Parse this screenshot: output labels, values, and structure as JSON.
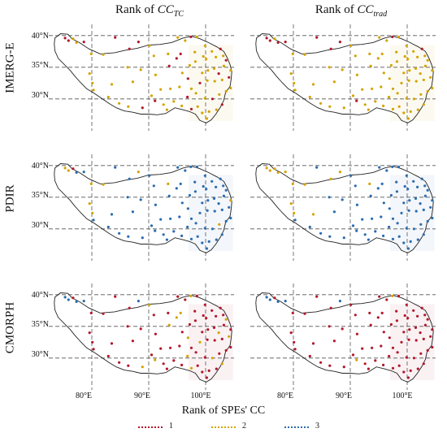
{
  "column_titles": [
    {
      "prefix": "Rank of ",
      "var": "CC",
      "sub": "TC"
    },
    {
      "prefix": "Rank of ",
      "var": "CC",
      "sub": "trad"
    }
  ],
  "row_labels": [
    "IMERG-E",
    "PDIR",
    "CMORPH"
  ],
  "lat_ticks": [
    "40°N",
    "35°N",
    "30°N"
  ],
  "lon_ticks": [
    "80°E",
    "90°E",
    "100°E"
  ],
  "legend": {
    "title": "Rank of SPEs' CC",
    "items": [
      {
        "label": "1",
        "color": "#b2182b"
      },
      {
        "label": "2",
        "color": "#d4a300"
      },
      {
        "label": "3",
        "color": "#2b6cb0"
      }
    ]
  },
  "chart_data": {
    "type": "scatter",
    "title": "",
    "xlabel": "",
    "ylabel": "",
    "xlim": [
      73,
      105
    ],
    "ylim": [
      26,
      41
    ],
    "x_ticks": [
      80,
      90,
      100
    ],
    "y_ticks": [
      30,
      35,
      40
    ],
    "grid": true,
    "legend_position": "bottom",
    "stations": [
      [
        75.3,
        39.6
      ],
      [
        75.9,
        39.2
      ],
      [
        76.7,
        39.5
      ],
      [
        77.3,
        38.9
      ],
      [
        78.6,
        39.0
      ],
      [
        79.9,
        37.1
      ],
      [
        82.0,
        37.0
      ],
      [
        80.1,
        32.5
      ],
      [
        83.5,
        32.3
      ],
      [
        84.1,
        39.7
      ],
      [
        86.6,
        37.9
      ],
      [
        88.2,
        39.0
      ],
      [
        90.1,
        38.4
      ],
      [
        93.4,
        37.1
      ],
      [
        94.9,
        36.4
      ],
      [
        95.1,
        39.7
      ],
      [
        96.4,
        39.2
      ],
      [
        97.4,
        39.8
      ],
      [
        98.5,
        39.8
      ],
      [
        99.9,
        38.4
      ],
      [
        101.1,
        37.5
      ],
      [
        102.6,
        37.9
      ],
      [
        103.6,
        36.1
      ],
      [
        101.8,
        36.6
      ],
      [
        100.1,
        36.3
      ],
      [
        98.1,
        37.4
      ],
      [
        97.2,
        35.3
      ],
      [
        95.9,
        34.1
      ],
      [
        96.9,
        33.2
      ],
      [
        99.4,
        34.1
      ],
      [
        100.4,
        34.5
      ],
      [
        101.5,
        34.8
      ],
      [
        102.3,
        34.0
      ],
      [
        103.2,
        35.2
      ],
      [
        104.4,
        34.5
      ],
      [
        102.9,
        33.0
      ],
      [
        101.6,
        32.8
      ],
      [
        100.3,
        32.9
      ],
      [
        99.0,
        32.5
      ],
      [
        97.5,
        31.6
      ],
      [
        95.4,
        31.9
      ],
      [
        93.8,
        31.6
      ],
      [
        92.1,
        31.5
      ],
      [
        90.5,
        30.5
      ],
      [
        91.1,
        29.7
      ],
      [
        92.6,
        29.1
      ],
      [
        94.4,
        29.6
      ],
      [
        96.8,
        30.3
      ],
      [
        98.3,
        30.9
      ],
      [
        99.9,
        30.1
      ],
      [
        101.2,
        30.0
      ],
      [
        102.4,
        30.7
      ],
      [
        103.6,
        31.2
      ],
      [
        104.4,
        31.7
      ],
      [
        102.9,
        29.1
      ],
      [
        101.9,
        28.3
      ],
      [
        100.6,
        28.0
      ],
      [
        99.4,
        27.8
      ],
      [
        100.2,
        26.9
      ],
      [
        98.6,
        28.8
      ],
      [
        97.5,
        28.4
      ],
      [
        95.8,
        28.9
      ],
      [
        93.2,
        28.3
      ],
      [
        88.9,
        28.6
      ],
      [
        86.4,
        28.8
      ],
      [
        84.8,
        29.3
      ],
      [
        82.9,
        30.3
      ],
      [
        80.3,
        31.4
      ],
      [
        79.6,
        34.0
      ],
      [
        87.2,
        32.7
      ],
      [
        88.6,
        34.6
      ],
      [
        91.2,
        33.8
      ],
      [
        93.6,
        35.2
      ],
      [
        90.9,
        36.8
      ],
      [
        86.3,
        35.0
      ],
      [
        98.2,
        35.9
      ],
      [
        95.6,
        37.1
      ],
      [
        99.6,
        36.7
      ],
      [
        103.1,
        36.8
      ],
      [
        104.1,
        33.4
      ]
    ],
    "series": [
      {
        "name": "IMERG-E, CC_TC",
        "values": [
          1,
          1,
          2,
          2,
          1,
          2,
          2,
          2,
          2,
          1,
          1,
          1,
          2,
          2,
          1,
          2,
          2,
          1,
          2,
          2,
          2,
          1,
          1,
          2,
          2,
          2,
          2,
          2,
          1,
          2,
          2,
          2,
          1,
          2,
          2,
          2,
          2,
          2,
          1,
          2,
          2,
          2,
          2,
          2,
          1,
          2,
          2,
          1,
          2,
          2,
          1,
          2,
          2,
          2,
          1,
          2,
          2,
          2,
          2,
          2,
          1,
          2,
          2,
          1,
          2,
          2,
          2,
          2,
          2,
          2,
          2,
          2,
          1,
          2,
          2,
          2,
          1,
          2,
          2,
          1
        ]
      },
      {
        "name": "IMERG-E, CC_trad",
        "values": [
          1,
          1,
          2,
          1,
          1,
          2,
          2,
          2,
          2,
          1,
          1,
          1,
          2,
          2,
          2,
          2,
          2,
          1,
          2,
          2,
          2,
          1,
          2,
          2,
          2,
          2,
          2,
          2,
          2,
          2,
          2,
          2,
          2,
          2,
          2,
          2,
          2,
          2,
          2,
          2,
          2,
          2,
          2,
          2,
          1,
          2,
          2,
          2,
          2,
          2,
          2,
          2,
          2,
          2,
          2,
          2,
          2,
          2,
          2,
          2,
          2,
          2,
          2,
          2,
          2,
          2,
          2,
          2,
          2,
          2,
          2,
          2,
          2,
          2,
          2,
          2,
          2,
          2,
          2,
          2
        ]
      },
      {
        "name": "PDIR, CC_TC",
        "values": [
          2,
          2,
          1,
          3,
          3,
          2,
          2,
          2,
          3,
          3,
          3,
          2,
          3,
          2,
          3,
          3,
          3,
          3,
          3,
          3,
          3,
          3,
          3,
          3,
          3,
          3,
          3,
          3,
          3,
          3,
          3,
          3,
          3,
          3,
          2,
          3,
          3,
          3,
          3,
          3,
          3,
          3,
          3,
          3,
          3,
          3,
          3,
          3,
          3,
          3,
          3,
          2,
          3,
          3,
          3,
          3,
          3,
          3,
          3,
          3,
          3,
          3,
          3,
          3,
          3,
          3,
          3,
          3,
          2,
          3,
          3,
          3,
          3,
          3,
          3,
          3,
          3,
          3,
          3,
          3
        ]
      },
      {
        "name": "PDIR, CC_trad",
        "values": [
          2,
          2,
          2,
          2,
          2,
          2,
          2,
          2,
          2,
          3,
          2,
          2,
          3,
          2,
          3,
          3,
          3,
          3,
          3,
          3,
          3,
          3,
          3,
          3,
          3,
          3,
          3,
          3,
          3,
          3,
          3,
          3,
          3,
          3,
          3,
          3,
          3,
          3,
          3,
          3,
          3,
          3,
          3,
          3,
          3,
          3,
          3,
          3,
          3,
          3,
          3,
          3,
          3,
          3,
          3,
          3,
          3,
          3,
          3,
          3,
          3,
          3,
          3,
          3,
          3,
          3,
          3,
          3,
          2,
          3,
          3,
          3,
          3,
          3,
          3,
          3,
          3,
          3,
          3,
          3
        ]
      },
      {
        "name": "CMORPH, CC_TC",
        "values": [
          3,
          3,
          1,
          3,
          3,
          1,
          1,
          1,
          1,
          1,
          1,
          3,
          2,
          1,
          2,
          1,
          1,
          2,
          1,
          1,
          1,
          1,
          2,
          1,
          1,
          1,
          1,
          1,
          2,
          1,
          1,
          1,
          2,
          1,
          1,
          1,
          1,
          1,
          2,
          1,
          1,
          1,
          1,
          1,
          2,
          1,
          1,
          2,
          1,
          1,
          2,
          1,
          1,
          1,
          2,
          1,
          1,
          1,
          1,
          1,
          2,
          1,
          1,
          2,
          1,
          1,
          1,
          1,
          1,
          1,
          1,
          1,
          2,
          1,
          1,
          1,
          2,
          1,
          1,
          2
        ]
      },
      {
        "name": "CMORPH, CC_trad",
        "values": [
          3,
          3,
          1,
          3,
          3,
          1,
          1,
          1,
          1,
          1,
          1,
          3,
          1,
          1,
          1,
          1,
          1,
          2,
          1,
          1,
          1,
          1,
          1,
          1,
          1,
          1,
          1,
          1,
          1,
          1,
          1,
          1,
          1,
          1,
          1,
          1,
          1,
          1,
          1,
          1,
          1,
          1,
          1,
          1,
          2,
          1,
          1,
          1,
          1,
          1,
          1,
          1,
          1,
          1,
          1,
          1,
          1,
          1,
          1,
          1,
          1,
          1,
          1,
          1,
          1,
          1,
          1,
          1,
          1,
          1,
          1,
          1,
          1,
          1,
          1,
          1,
          1,
          1,
          1,
          1
        ]
      }
    ]
  }
}
